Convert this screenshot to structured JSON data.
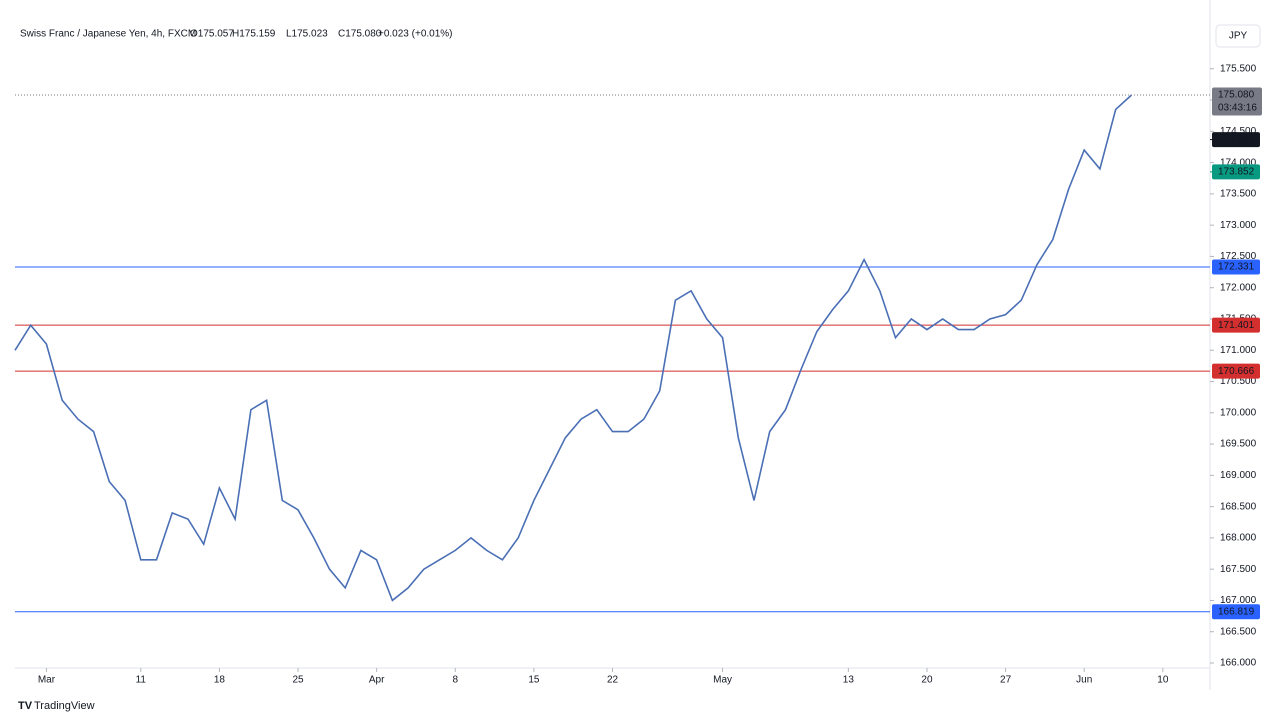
{
  "header": {
    "symbol": "Swiss Franc / Japanese Yen, 4h, FXCM",
    "ohlc": [
      "O175.057",
      "H175.159",
      "L175.023",
      "C175.080",
      "+0.023 (+0.01%)"
    ],
    "currency": "JPY",
    "brand": "TradingView"
  },
  "chart_data": {
    "type": "line",
    "x": [
      -2,
      -1,
      0,
      1,
      2,
      3,
      4,
      5,
      6,
      7,
      8,
      9,
      10,
      11,
      12,
      13,
      14,
      15,
      16,
      17,
      18,
      19,
      20,
      21,
      22,
      23,
      24,
      25,
      26,
      27,
      28,
      29,
      30,
      31,
      32,
      33,
      34,
      35,
      36,
      37,
      38,
      39,
      40,
      41,
      42,
      43,
      44,
      45,
      46,
      47,
      48,
      49,
      50,
      51,
      52,
      53,
      54,
      55,
      56,
      57,
      58,
      59,
      60,
      61,
      62,
      63,
      64,
      65,
      66,
      67,
      68,
      69
    ],
    "series": [
      {
        "color": "#4a6fb5",
        "values": [
          171.0,
          171.4,
          171.1,
          170.2,
          169.9,
          169.7,
          168.9,
          168.6,
          167.65,
          167.65,
          168.4,
          168.3,
          167.9,
          168.8,
          168.3,
          170.05,
          170.2,
          168.6,
          168.45,
          168.0,
          167.5,
          167.2,
          167.8,
          167.65,
          167.0,
          167.2,
          167.5,
          167.65,
          167.8,
          168.0,
          167.8,
          167.65,
          168.0,
          168.6,
          169.1,
          169.6,
          169.9,
          170.05,
          169.7,
          169.7,
          169.9,
          170.35,
          171.8,
          171.95,
          171.5,
          171.2,
          169.6,
          168.6,
          169.7,
          170.05,
          170.7,
          171.3,
          171.65,
          171.95,
          172.45,
          171.95,
          171.2,
          171.5,
          171.33,
          171.5,
          171.33,
          171.33,
          171.5,
          171.57,
          171.8,
          172.37,
          172.77,
          173.57,
          174.2,
          173.9,
          174.85,
          175.08
        ]
      }
    ],
    "xlim": [
      -2,
      74
    ],
    "xticks": [
      {
        "value": 0,
        "label": "Mar"
      },
      {
        "value": 6,
        "label": "11"
      },
      {
        "value": 11,
        "label": "18"
      },
      {
        "value": 16,
        "label": "25"
      },
      {
        "value": 21,
        "label": "Apr"
      },
      {
        "value": 26,
        "label": "8"
      },
      {
        "value": 31,
        "label": "15"
      },
      {
        "value": 36,
        "label": "22"
      },
      {
        "value": 43,
        "label": "May"
      },
      {
        "value": 51,
        "label": "13"
      },
      {
        "value": 56,
        "label": "20"
      },
      {
        "value": 61,
        "label": "27"
      },
      {
        "value": 66,
        "label": "Jun"
      },
      {
        "value": 71,
        "label": "10"
      }
    ],
    "ylim": [
      165.92,
      176.28
    ],
    "yticks": [
      {
        "value": 166,
        "label": "166.000"
      },
      {
        "value": 166.5,
        "label": "166.500"
      },
      {
        "value": 167,
        "label": "167.000"
      },
      {
        "value": 167.5,
        "label": "167.500"
      },
      {
        "value": 168,
        "label": "168.000"
      },
      {
        "value": 168.5,
        "label": "168.500"
      },
      {
        "value": 169,
        "label": "169.000"
      },
      {
        "value": 169.5,
        "label": "169.500"
      },
      {
        "value": 170,
        "label": "170.000"
      },
      {
        "value": 170.5,
        "label": "170.500"
      },
      {
        "value": 171,
        "label": "171.000"
      },
      {
        "value": 171.5,
        "label": "171.500"
      },
      {
        "value": 172,
        "label": "172.000"
      },
      {
        "value": 172.5,
        "label": "172.500"
      },
      {
        "value": 173,
        "label": "173.000"
      },
      {
        "value": 173.5,
        "label": "173.500"
      },
      {
        "value": 174,
        "label": "174.000"
      },
      {
        "value": 174.5,
        "label": "174.500"
      },
      {
        "value": 175,
        "label": "175.000"
      },
      {
        "value": 175.5,
        "label": "175.500"
      }
    ],
    "levels": [
      {
        "value": 172.331,
        "color": "#2962ff"
      },
      {
        "value": 171.401,
        "color": "#d32f2f"
      },
      {
        "value": 170.666,
        "color": "#d32f2f"
      },
      {
        "value": 166.819,
        "color": "#2962ff"
      }
    ],
    "markers": [
      {
        "value": 174.368,
        "color": "#131722"
      },
      {
        "value": 173.852,
        "color": "#089981"
      }
    ],
    "last_price": {
      "value": 175.08,
      "label": "175.080",
      "countdown": "03:43:16",
      "color": "#787b86"
    }
  }
}
